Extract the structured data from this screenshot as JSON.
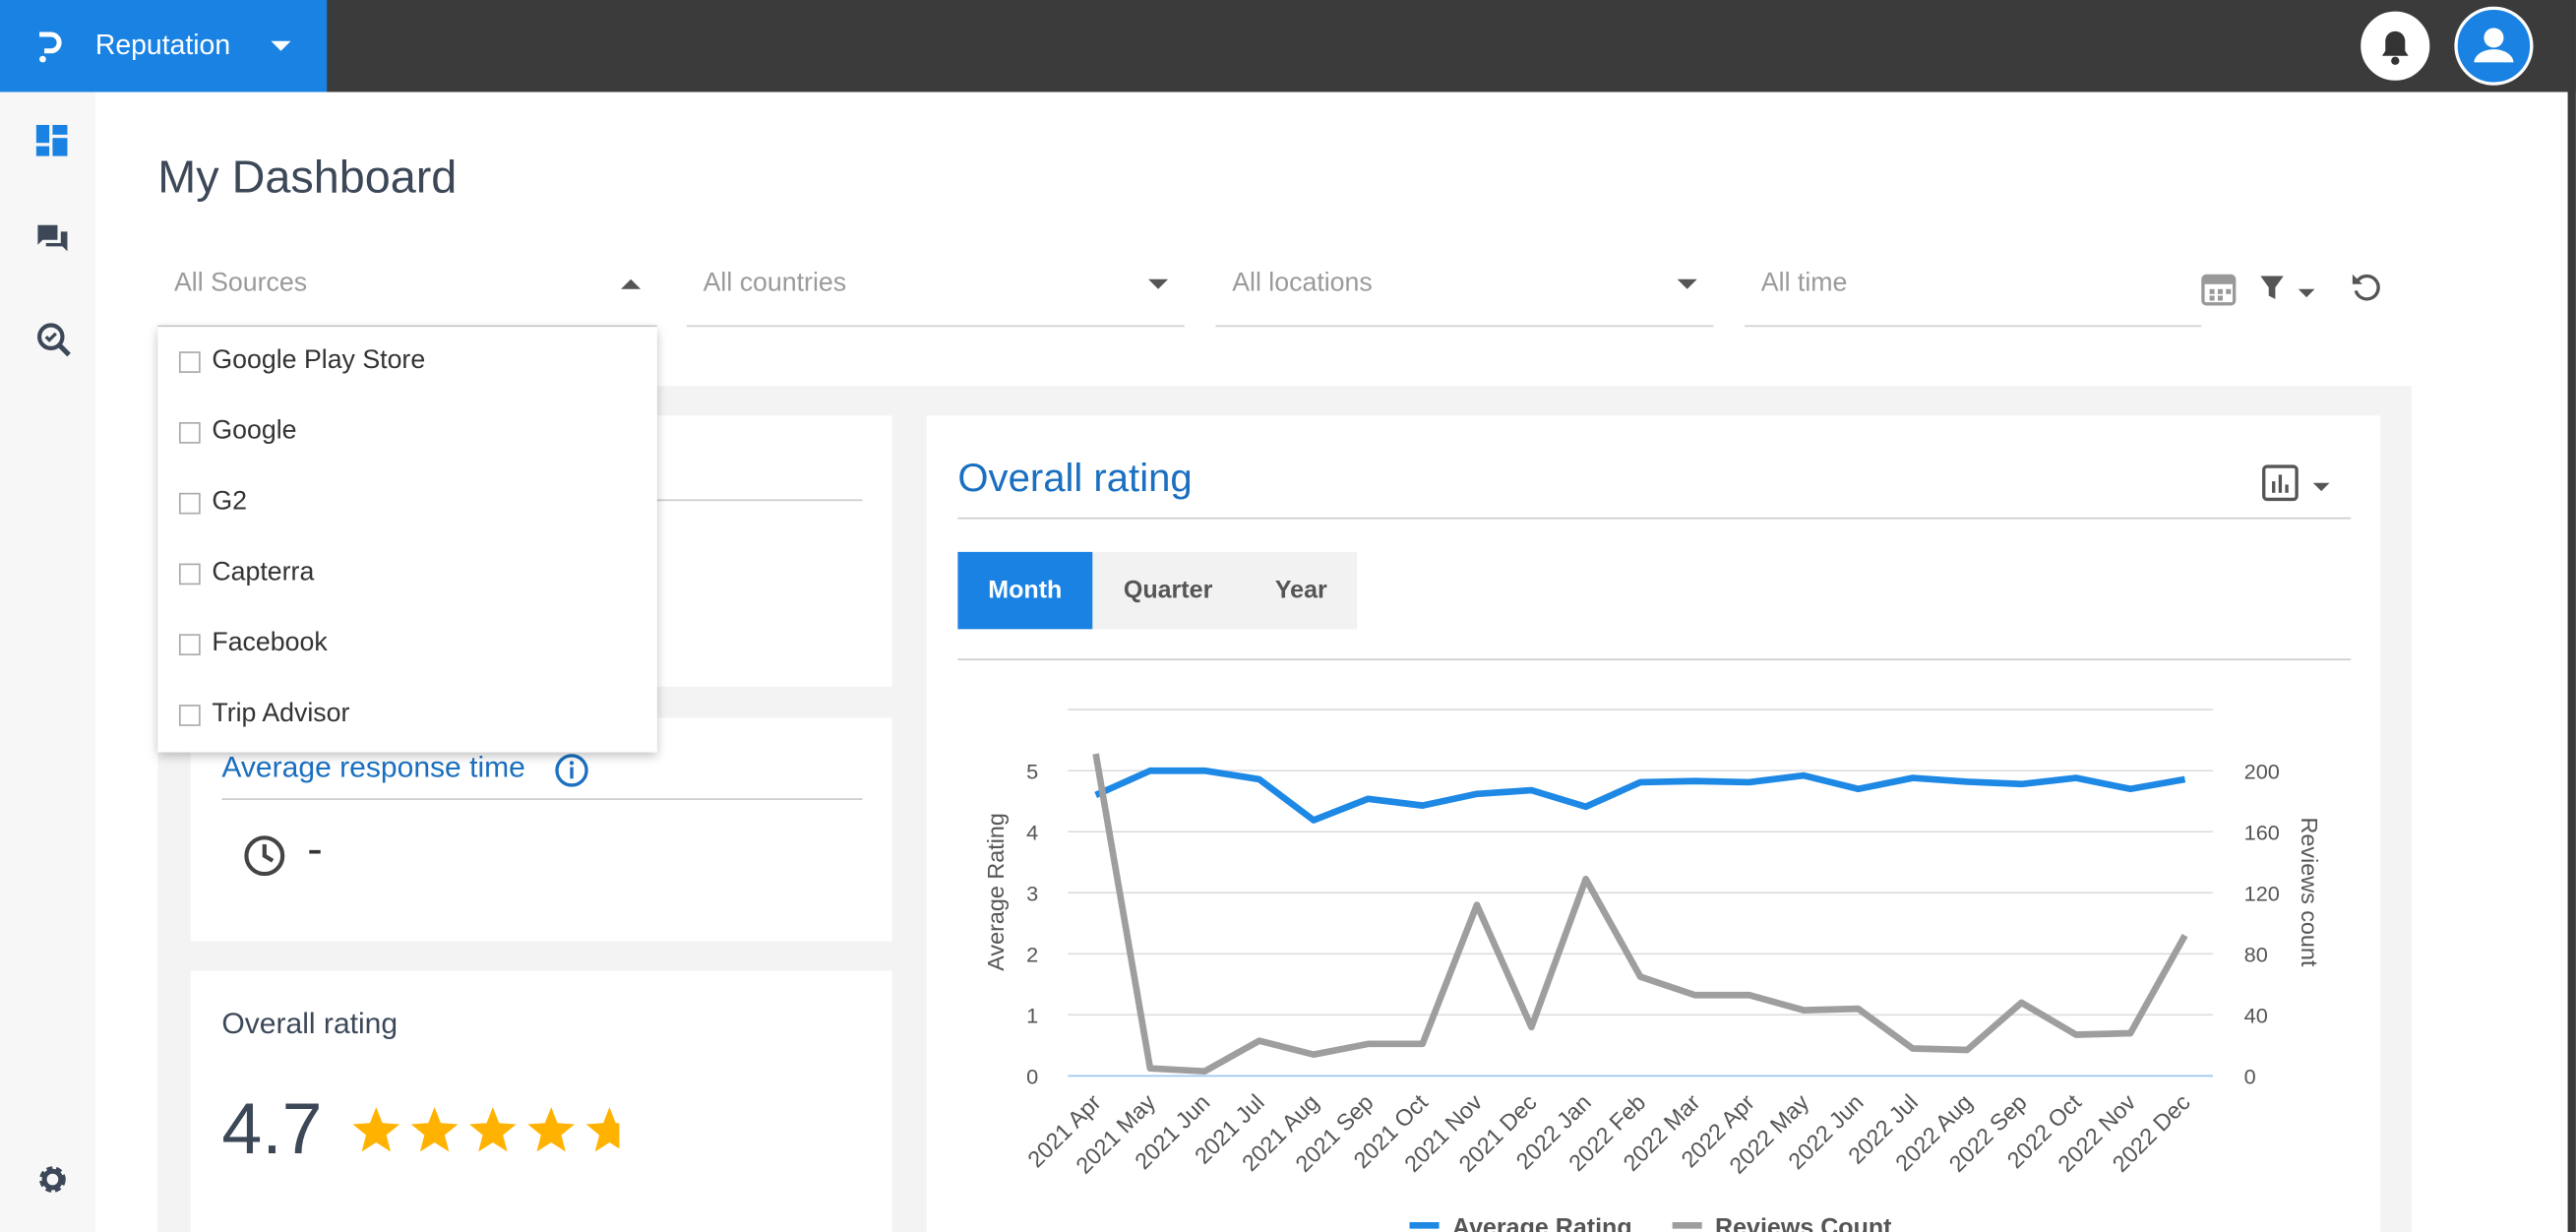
{
  "header": {
    "app_name": "Reputation"
  },
  "page": {
    "title": "My Dashboard"
  },
  "filters": [
    "All Sources",
    "All countries",
    "All locations",
    "All time"
  ],
  "sources_dropdown": [
    "Google Play Store",
    "Google",
    "G2",
    "Capterra",
    "Facebook",
    "Trip Advisor"
  ],
  "cards": {
    "response_time": {
      "title": "Average response time",
      "value": "-"
    },
    "overall": {
      "title": "Overall rating",
      "value": 4.7
    }
  },
  "chart_panel": {
    "title": "Overall rating",
    "tabs": [
      "Month",
      "Quarter",
      "Year"
    ]
  },
  "chart_data": {
    "type": "line",
    "categories": [
      "2021 Apr",
      "2021 May",
      "2021 Jun",
      "2021 Jul",
      "2021 Aug",
      "2021 Sep",
      "2021 Oct",
      "2021 Nov",
      "2021 Dec",
      "2022 Jan",
      "2022 Feb",
      "2022 Mar",
      "2022 Apr",
      "2022 May",
      "2022 Jun",
      "2022 Jul",
      "2022 Aug",
      "2022 Sep",
      "2022 Oct",
      "2022 Nov",
      "2022 Dec"
    ],
    "series": [
      {
        "name": "Average Rating",
        "color": "#1e88e5",
        "values": [
          4.6,
          5.0,
          5.0,
          4.86,
          4.19,
          4.54,
          4.43,
          4.62,
          4.68,
          4.41,
          4.81,
          4.83,
          4.81,
          4.92,
          4.7,
          4.88,
          4.82,
          4.78,
          4.88,
          4.7,
          4.86
        ]
      },
      {
        "name": "Reviews Count",
        "color": "#9e9e9e",
        "axis": "y2",
        "values": [
          211,
          5,
          3,
          23,
          14,
          21,
          21,
          112,
          32,
          129,
          65,
          53,
          53,
          43,
          44,
          18,
          17,
          48,
          27,
          28,
          92
        ]
      }
    ],
    "y_label": "Average Rating",
    "y2_label": "Reviews count",
    "ylim": [
      0,
      6
    ],
    "yticks": [
      0,
      1,
      2,
      3,
      4,
      5
    ],
    "y2lim": [
      0,
      240
    ],
    "y2ticks": [
      0,
      40,
      80,
      120,
      160,
      200
    ],
    "grid": true,
    "legend": "bottom"
  }
}
